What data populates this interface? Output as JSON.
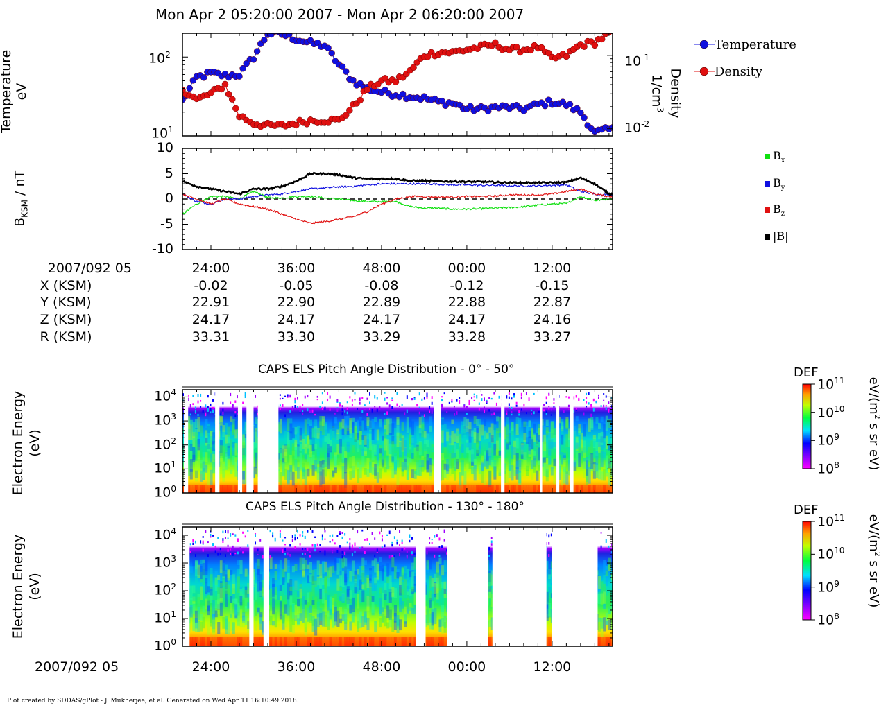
{
  "title": "Mon Apr 2 05:20:00 2007 - Mon Apr 2 06:20:00 2007",
  "footer": "Plot created by SDDAS/gPlot - J. Mukherjee, et al.  Generated on Wed Apr 11 16:10:49 2018.",
  "panel1": {
    "ylabel_left_1": "Temperature",
    "ylabel_left_2": "eV",
    "ylabel_right_1": "Density",
    "ylabel_right_2": "1/cm",
    "ylabel_right_sup": "3",
    "left_ticks": [
      {
        "base": "10",
        "exp": "2"
      },
      {
        "base": "10",
        "exp": "1"
      }
    ],
    "right_ticks": [
      {
        "base": "10",
        "exp": "-1"
      },
      {
        "base": "10",
        "exp": "-2"
      }
    ],
    "legend": [
      {
        "label": "Temperature",
        "color": "#1010e0"
      },
      {
        "label": "Density",
        "color": "#e01010"
      }
    ]
  },
  "panel2": {
    "ylabel_main": "B",
    "ylabel_sub": "KSM",
    "ylabel_rest": " / nT",
    "yticks": [
      "10",
      "5",
      "0",
      "-5",
      "-10"
    ],
    "legend": [
      {
        "main": "B",
        "sub": "x",
        "color": "#10e010"
      },
      {
        "main": "B",
        "sub": "y",
        "color": "#1010e0"
      },
      {
        "main": "B",
        "sub": "z",
        "color": "#e01010"
      },
      {
        "main": "|B|",
        "sub": "",
        "color": "#000000"
      }
    ]
  },
  "axis_table": {
    "rows": [
      {
        "label": "2007/092 05",
        "values": [
          "24:00",
          "36:00",
          "48:00",
          "00:00",
          "12:00"
        ]
      },
      {
        "label": "X (KSM)",
        "values": [
          "-0.02",
          "-0.05",
          "-0.08",
          "-0.12",
          "-0.15"
        ]
      },
      {
        "label": "Y (KSM)",
        "values": [
          "22.91",
          "22.90",
          "22.89",
          "22.88",
          "22.87"
        ]
      },
      {
        "label": "Z (KSM)",
        "values": [
          "24.17",
          "24.17",
          "24.17",
          "24.17",
          "24.16"
        ]
      },
      {
        "label": "R (KSM)",
        "values": [
          "33.31",
          "33.30",
          "33.29",
          "33.28",
          "33.27"
        ]
      }
    ]
  },
  "panel3": {
    "title": "CAPS ELS Pitch Angle Distribution - 0° - 50°",
    "ylabel_1": "Electron Energy",
    "ylabel_2": "(eV)",
    "yticks": [
      {
        "base": "10",
        "exp": "4"
      },
      {
        "base": "10",
        "exp": "3"
      },
      {
        "base": "10",
        "exp": "2"
      },
      {
        "base": "10",
        "exp": "1"
      },
      {
        "base": "10",
        "exp": "0"
      }
    ]
  },
  "panel4": {
    "title": "CAPS ELS Pitch Angle Distribution - 130° - 180°",
    "ylabel_1": "Electron Energy",
    "ylabel_2": "(eV)",
    "yticks": [
      {
        "base": "10",
        "exp": "4"
      },
      {
        "base": "10",
        "exp": "3"
      },
      {
        "base": "10",
        "exp": "2"
      },
      {
        "base": "10",
        "exp": "1"
      },
      {
        "base": "10",
        "exp": "0"
      }
    ]
  },
  "colorbar": {
    "label": "DEF",
    "unit_pre": "eV/(m",
    "unit_sup": "2",
    "unit_post": " s sr eV)",
    "ticks": [
      {
        "base": "10",
        "exp": "11"
      },
      {
        "base": "10",
        "exp": "10"
      },
      {
        "base": "10",
        "exp": "9"
      },
      {
        "base": "10",
        "exp": "8"
      }
    ]
  },
  "bottom_axis": {
    "label": "2007/092 05",
    "ticks": [
      "24:00",
      "36:00",
      "48:00",
      "00:00",
      "12:00"
    ]
  },
  "chart_data": [
    {
      "type": "line",
      "title": "Mon Apr 2 05:20:00 2007 - Mon Apr 2 06:20:00 2007",
      "xlabel": "",
      "ylabel": "Temperature eV",
      "y2label": "Density 1/cm3",
      "yscale": "log",
      "ylim": [
        10,
        200
      ],
      "y2lim": [
        0.008,
        0.2
      ],
      "x_minutes": [
        20,
        22,
        24,
        26,
        28,
        30,
        32,
        34,
        36,
        38,
        40,
        42,
        44,
        46,
        48,
        50,
        52,
        54,
        56,
        58,
        60,
        62,
        64,
        66,
        68,
        70,
        72,
        74,
        76,
        78,
        80
      ],
      "series": [
        {
          "name": "Temperature",
          "color": "#1010e0",
          "values": [
            28,
            55,
            62,
            58,
            60,
            100,
            200,
            195,
            170,
            150,
            140,
            80,
            50,
            40,
            36,
            34,
            32,
            30,
            27,
            26,
            22,
            22,
            23,
            23,
            22,
            25,
            27,
            25,
            20,
            11,
            12
          ]
        },
        {
          "name": "Density",
          "color": "#e01010",
          "values": [
            0.035,
            0.025,
            0.03,
            0.04,
            0.015,
            0.012,
            0.011,
            0.011,
            0.012,
            0.013,
            0.013,
            0.013,
            0.02,
            0.035,
            0.045,
            0.045,
            0.06,
            0.1,
            0.11,
            0.11,
            0.12,
            0.13,
            0.14,
            0.12,
            0.12,
            0.13,
            0.09,
            0.1,
            0.14,
            0.15,
            0.2
          ]
        }
      ]
    },
    {
      "type": "line",
      "ylabel": "B KSM / nT",
      "ylim": [
        -10,
        10
      ],
      "x_minutes": [
        20,
        22,
        24,
        26,
        28,
        30,
        32,
        34,
        36,
        38,
        40,
        42,
        44,
        46,
        48,
        50,
        52,
        54,
        56,
        58,
        60,
        62,
        64,
        66,
        68,
        70,
        72,
        74,
        76,
        78,
        80
      ],
      "series": [
        {
          "name": "Bx",
          "color": "#10e010",
          "values": [
            -3,
            -1,
            0.5,
            0.5,
            0,
            1.5,
            0.3,
            0.2,
            0.5,
            0.5,
            0.2,
            0,
            -0.3,
            -0.5,
            -0.5,
            -0.5,
            -1.5,
            -1.8,
            -1.8,
            -2,
            -2,
            -1.9,
            -1.8,
            -1.7,
            -1.5,
            -1.2,
            -1,
            -0.9,
            0.5,
            -0.3,
            0
          ]
        },
        {
          "name": "By",
          "color": "#1010e0",
          "values": [
            1,
            -0.5,
            -1,
            0,
            0,
            0.5,
            0.8,
            1,
            1.5,
            2,
            2.2,
            2.4,
            2.5,
            2.8,
            3,
            3,
            3,
            3,
            2.9,
            2.8,
            2.8,
            2.7,
            2.7,
            2.6,
            2.6,
            2.6,
            2.7,
            2.8,
            1.5,
            1,
            0.8
          ]
        },
        {
          "name": "Bz",
          "color": "#e01010",
          "values": [
            1,
            0,
            -1,
            0,
            -1,
            -1.5,
            -2,
            -3,
            -4,
            -4.8,
            -4.5,
            -4,
            -3.5,
            -2.5,
            -1,
            0,
            0.5,
            0.5,
            0.4,
            0.4,
            0.5,
            0.5,
            0.6,
            0.8,
            0.8,
            0.8,
            1,
            1.5,
            2,
            1,
            0.5
          ]
        },
        {
          "name": "|B|",
          "color": "#000000",
          "values": [
            3.5,
            2.5,
            2,
            1.5,
            1,
            2,
            2,
            2.5,
            3.5,
            5,
            5,
            4.8,
            4.2,
            4,
            4,
            4,
            3.6,
            3.6,
            3.5,
            3.5,
            3.4,
            3.4,
            3.3,
            3.2,
            3.2,
            3.2,
            3.2,
            3.3,
            4.2,
            3,
            1
          ]
        }
      ]
    },
    {
      "type": "heatmap",
      "title": "CAPS ELS Pitch Angle Distribution - 0° - 50°",
      "ylabel": "Electron Energy (eV)",
      "yscale": "log",
      "ylim": [
        1,
        20000
      ],
      "colorbar": {
        "label": "DEF",
        "unit": "eV/(m2 s sr eV)",
        "range": [
          100000000.0,
          100000000000.0
        ]
      },
      "gaps_minutes": [
        [
          20.2,
          20.8
        ],
        [
          24.6,
          25.2
        ],
        [
          27.8,
          28.4
        ],
        [
          29,
          30
        ],
        [
          30.6,
          33.5
        ],
        [
          55.4,
          56.4
        ],
        [
          64.8,
          65.3
        ],
        [
          70.3,
          70.6
        ],
        [
          72.6,
          73
        ],
        [
          74.5,
          75
        ]
      ]
    },
    {
      "type": "heatmap",
      "title": "CAPS ELS Pitch Angle Distribution - 130° - 180°",
      "ylabel": "Electron Energy (eV)",
      "yscale": "log",
      "ylim": [
        1,
        20000
      ],
      "colorbar": {
        "label": "DEF",
        "unit": "eV/(m2 s sr eV)",
        "range": [
          100000000.0,
          100000000000.0
        ]
      },
      "gaps_minutes": [
        [
          20,
          21
        ],
        [
          29.4,
          30
        ],
        [
          31.4,
          32.2
        ],
        [
          52.8,
          54.2
        ],
        [
          57.2,
          63
        ],
        [
          63.6,
          71.2
        ],
        [
          72,
          78.4
        ]
      ]
    }
  ]
}
